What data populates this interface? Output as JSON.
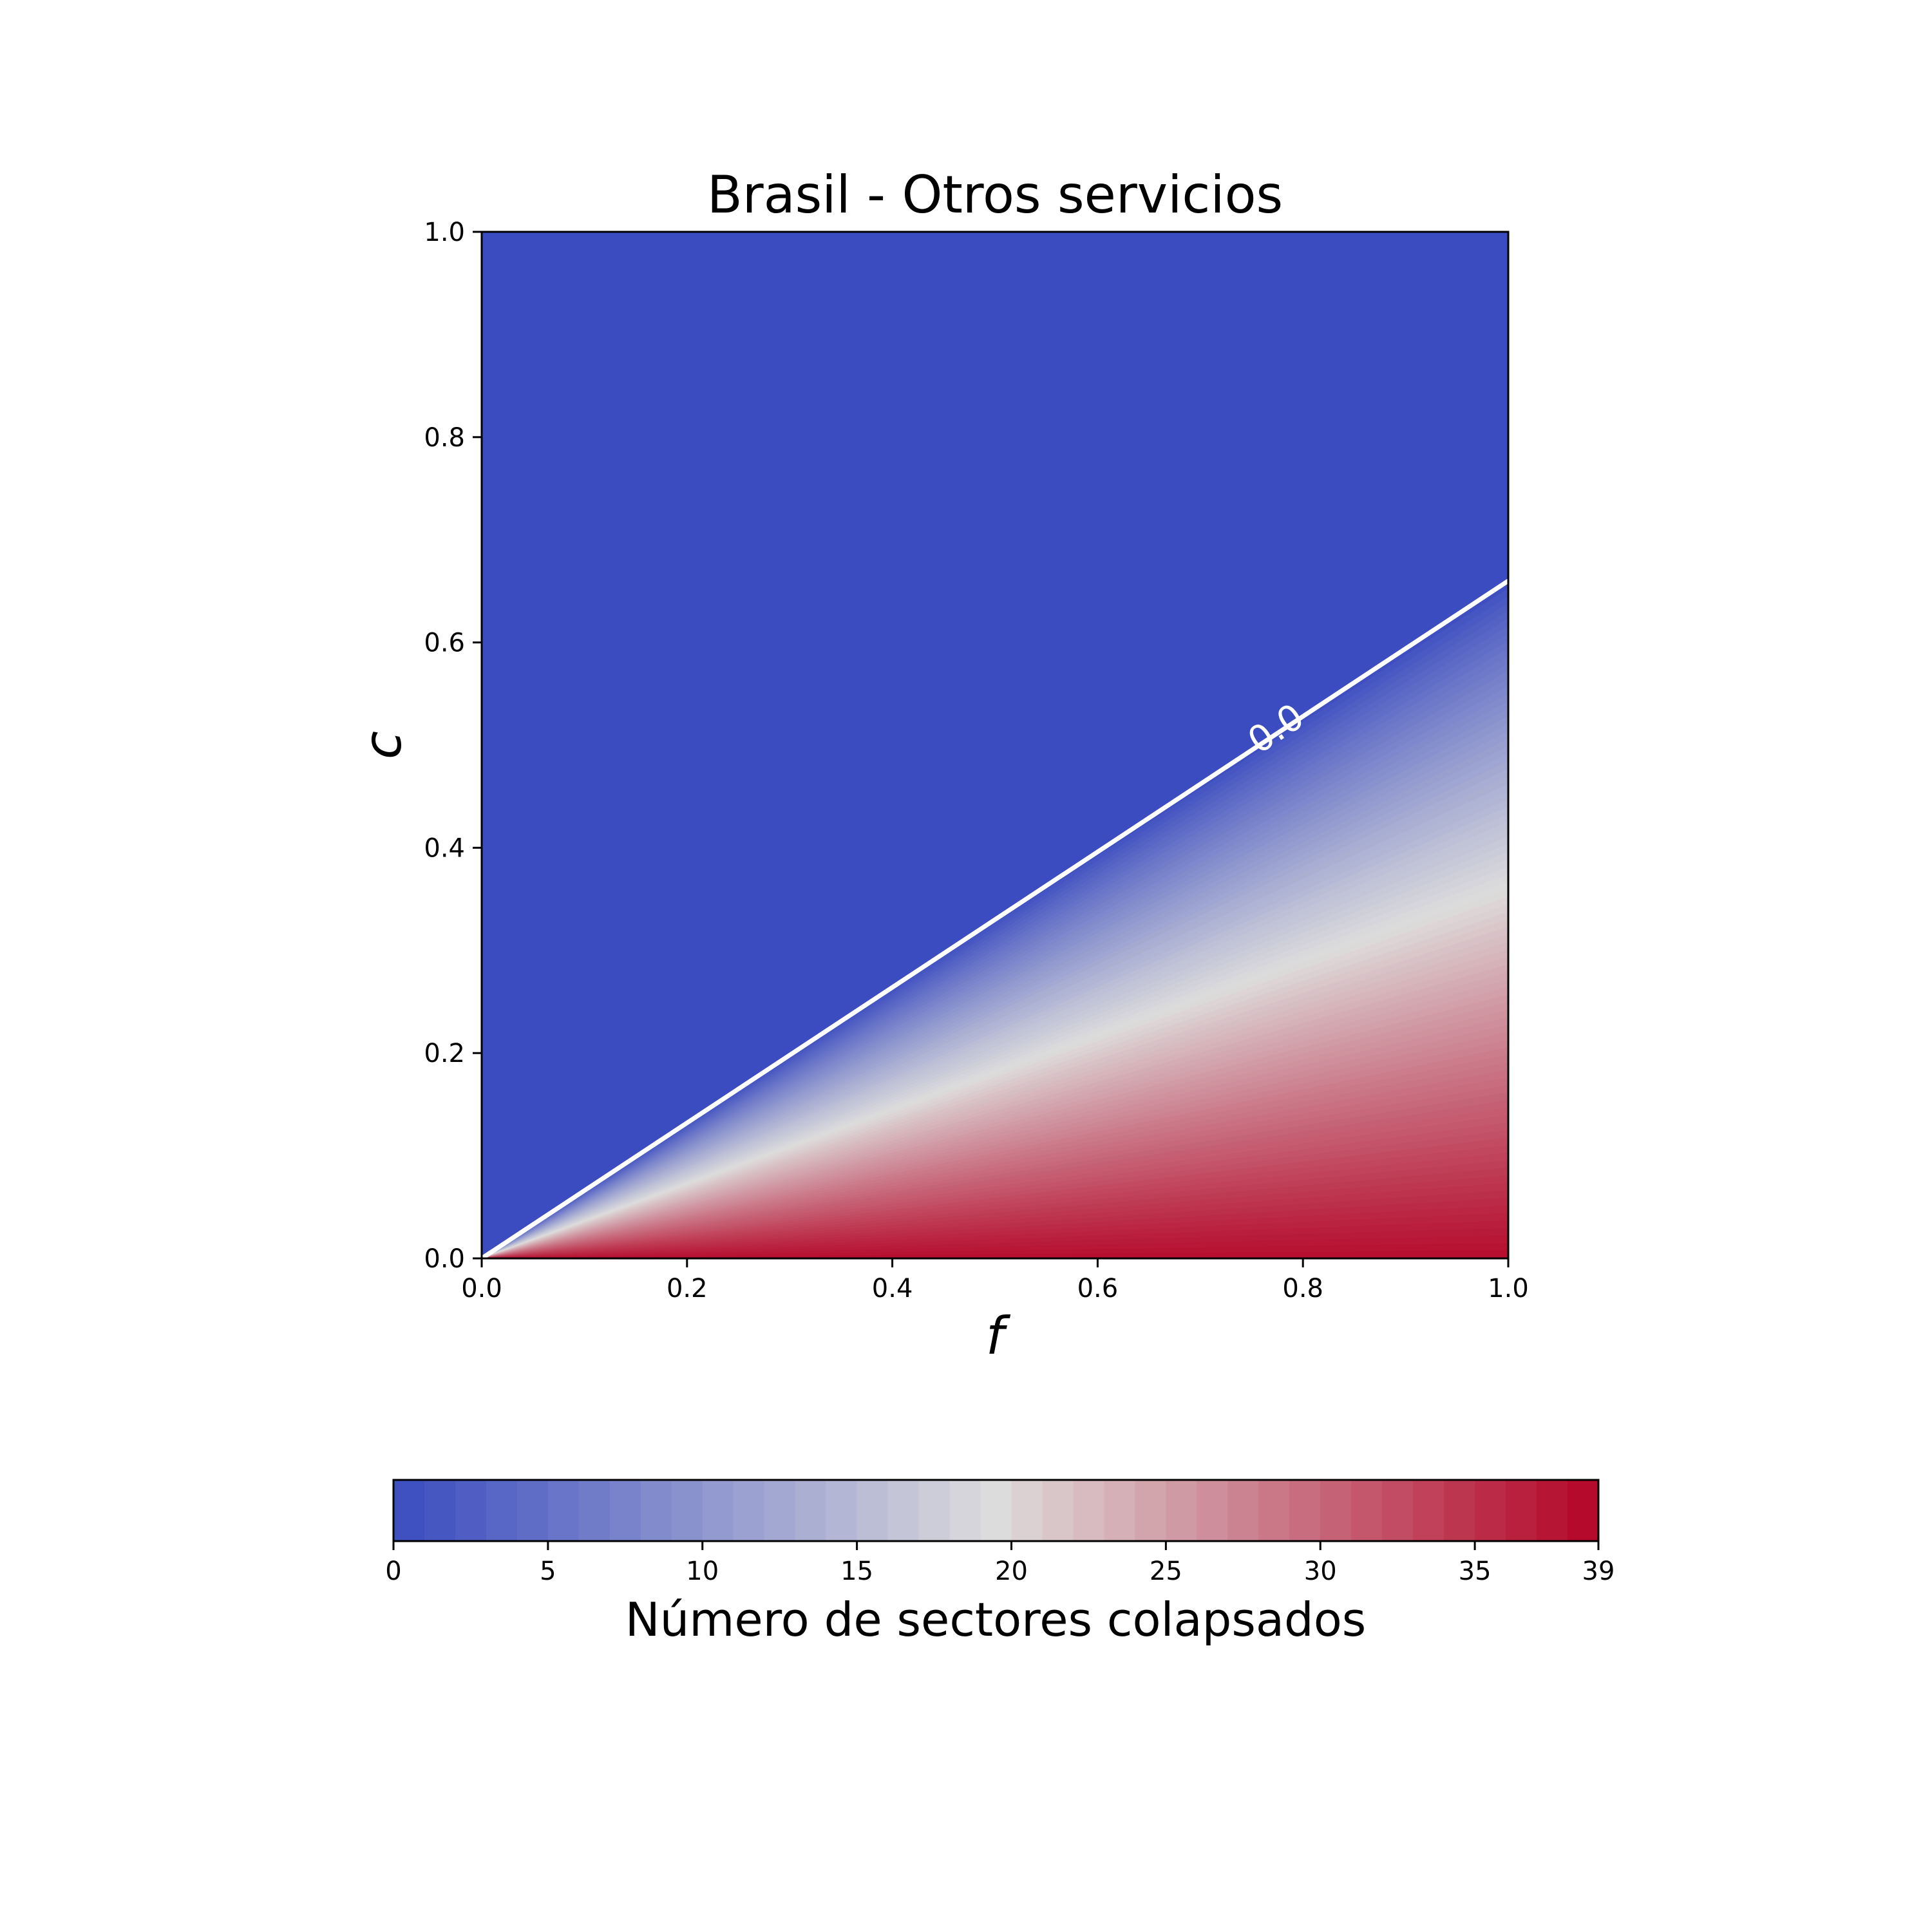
{
  "chart_data": {
    "type": "heatmap",
    "title": "Brasil - Otros servicios",
    "xlabel": "f",
    "ylabel": "c",
    "xlim": [
      0.0,
      1.0
    ],
    "ylim": [
      0.0,
      1.0
    ],
    "xticks": [
      "0.0",
      "0.2",
      "0.4",
      "0.6",
      "0.8",
      "1.0"
    ],
    "yticks": [
      "0.0",
      "0.2",
      "0.4",
      "0.6",
      "0.8",
      "1.0"
    ],
    "colormap": "coolwarm",
    "color_min": "#3b4cc0",
    "color_mid": "#dddcdc",
    "color_max": "#b40426",
    "value_range": [
      0,
      39
    ],
    "boundary_slope": 0.66,
    "contour": {
      "level_label": "0.0",
      "color": "#ffffff",
      "x": [
        0.0,
        1.0
      ],
      "y": [
        0.0,
        0.66
      ]
    },
    "colorbar": {
      "label": "Número de sectores colapsados",
      "ticks": [
        "0",
        "5",
        "10",
        "15",
        "20",
        "25",
        "30",
        "35",
        "39"
      ],
      "min": 0,
      "max": 39,
      "levels": 39
    }
  }
}
